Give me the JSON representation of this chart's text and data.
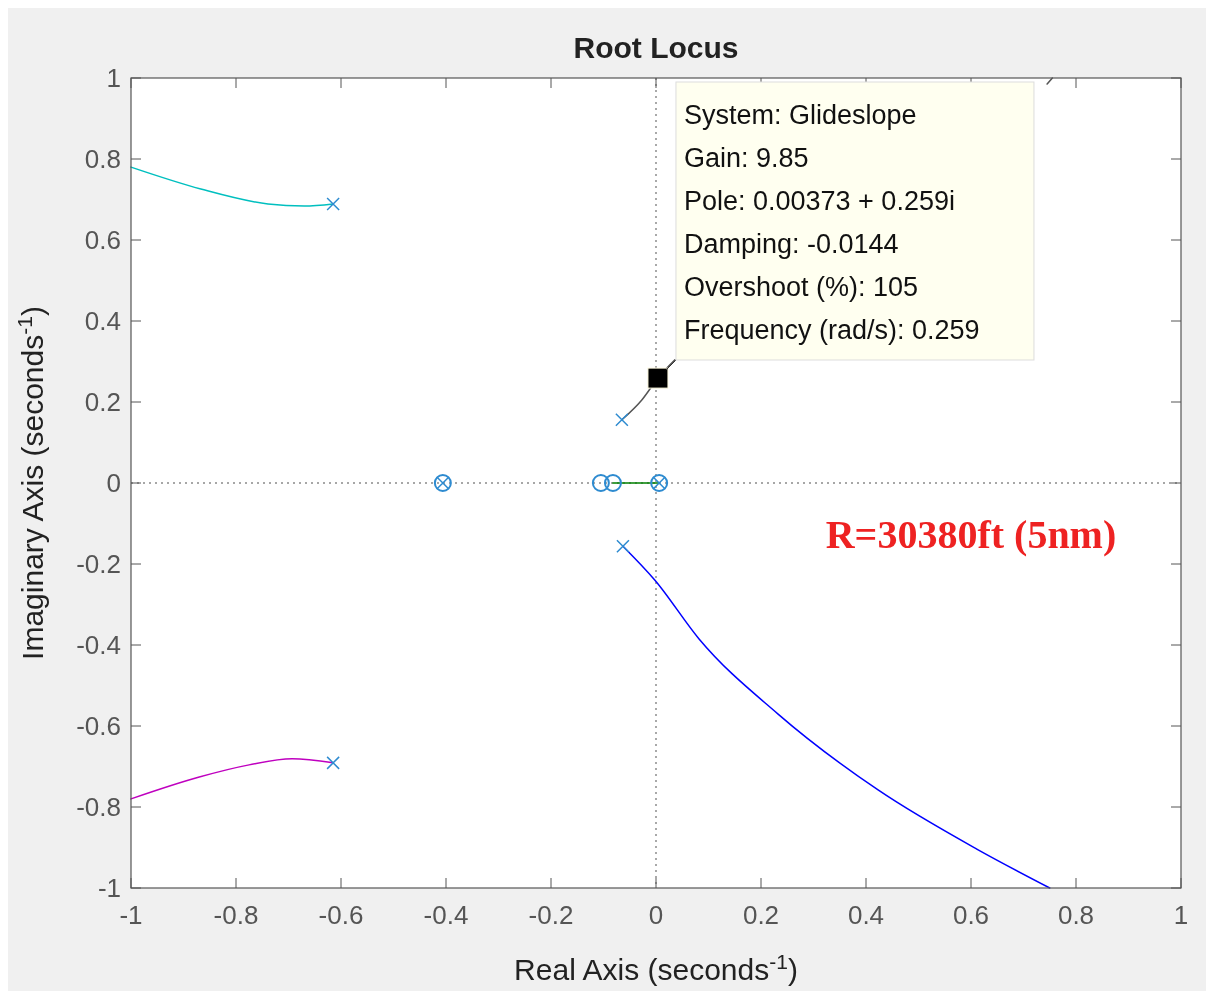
{
  "chart_data": {
    "type": "line",
    "title": "Root Locus",
    "xlabel": "Real Axis (seconds$^{-1}$)",
    "ylabel": "Imaginary Axis (seconds$^{-1}$)",
    "xlim": [
      -1,
      1
    ],
    "ylim": [
      -1,
      1
    ],
    "xticks": [
      -1,
      -0.8,
      -0.6,
      -0.4,
      -0.2,
      0,
      0.2,
      0.4,
      0.6,
      0.8,
      1
    ],
    "yticks": [
      -1,
      -0.8,
      -0.6,
      -0.4,
      -0.2,
      0,
      0.2,
      0.4,
      0.6,
      0.8,
      1
    ],
    "grid": false,
    "line_style": "solid",
    "ref_lines": [
      {
        "axis": "x",
        "value": 0,
        "color": "#707070",
        "line_style": "dotted"
      },
      {
        "axis": "y",
        "value": 0,
        "color": "#505050",
        "line_style": "dotted"
      }
    ],
    "series": [
      {
        "color": "#00bfbf",
        "marker": "none",
        "x": [
          -1,
          -0.867,
          -0.739,
          -0.67,
          -0.615
        ],
        "values": [
          0.78,
          0.726,
          0.689,
          0.684,
          0.689
        ]
      },
      {
        "color": "#bf00bf",
        "marker": "none",
        "x": [
          -1,
          -0.87,
          -0.775,
          -0.693,
          -0.615
        ],
        "values": [
          -0.78,
          -0.726,
          -0.696,
          -0.681,
          -0.691
        ]
      },
      {
        "color": "#0000ff",
        "marker": "none",
        "x": [
          -0.063,
          -0.002,
          0.082,
          0.232,
          0.423,
          0.611,
          0.75
        ],
        "values": [
          -0.156,
          -0.24,
          -0.385,
          -0.57,
          -0.758,
          -0.904,
          -1
        ]
      },
      {
        "color": "#555555",
        "marker": "none",
        "x": [
          -0.065,
          -0.027,
          0.00373,
          0.036,
          null,
          0.745,
          0.755
        ],
        "values": [
          0.156,
          0.205,
          0.259,
          0.304,
          null,
          0.985,
          1
        ]
      },
      {
        "color": "#008000",
        "marker": "none",
        "x": [
          -0.082,
          0.006
        ],
        "values": [
          0,
          0
        ]
      },
      {
        "type": "scatter",
        "color": "#2e8bd0",
        "marker": "cross",
        "x": [
          -0.615,
          -0.615,
          -0.065,
          -0.063,
          -0.406,
          0.006
        ],
        "values": [
          0.689,
          -0.691,
          0.156,
          -0.156,
          0,
          0
        ]
      },
      {
        "type": "scatter",
        "color": "#2e8bd0",
        "marker": "circle",
        "x": [
          -0.406,
          -0.105,
          -0.082,
          0.006
        ],
        "values": [
          0,
          0,
          0,
          0
        ]
      },
      {
        "type": "scatter",
        "color": "#000000",
        "marker": "square",
        "x": [
          0.00373
        ],
        "values": [
          0.259
        ]
      }
    ],
    "annotations": [
      {
        "text": "System: Glideslope\nGain: 9.85\nPole: 0.00373 + 0.259i\nDamping: -0.0144\nOvershoot (%): 105\nFrequency (rad/s): 0.259",
        "x": 0.00373,
        "y": 0.259
      },
      "R=30380ft (5nm)"
    ]
  }
}
